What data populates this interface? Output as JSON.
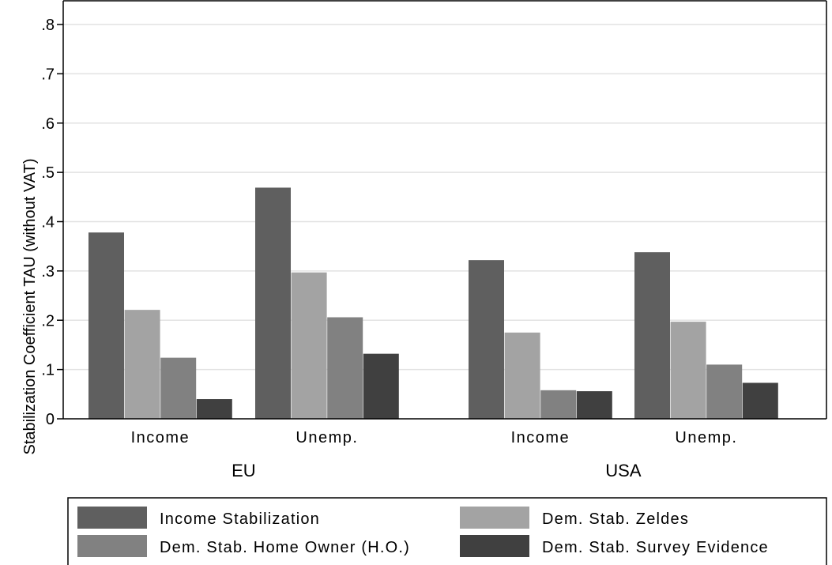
{
  "chart_data": {
    "type": "bar",
    "ylabel": "Stabilization Coefficient TAU (without VAT)",
    "ylim": [
      0,
      0.8
    ],
    "yticks": [
      {
        "value": 0,
        "label": "0"
      },
      {
        "value": 0.1,
        "label": ".1"
      },
      {
        "value": 0.2,
        "label": ".2"
      },
      {
        "value": 0.3,
        "label": ".3"
      },
      {
        "value": 0.4,
        "label": ".4"
      },
      {
        "value": 0.5,
        "label": ".5"
      },
      {
        "value": 0.6,
        "label": ".6"
      },
      {
        "value": 0.7,
        "label": ".7"
      },
      {
        "value": 0.8,
        "label": ".8"
      }
    ],
    "grid": true,
    "groups": [
      {
        "name": "EU",
        "categories": [
          "Income",
          "Unemp."
        ]
      },
      {
        "name": "USA",
        "categories": [
          "Income",
          "Unemp."
        ]
      }
    ],
    "series": [
      {
        "name": "Income Stabilization",
        "color": "#5f5f5f",
        "values": [
          0.378,
          0.469,
          0.322,
          0.338
        ]
      },
      {
        "name": "Dem. Stab. Zeldes",
        "color": "#a3a3a3",
        "values": [
          0.221,
          0.297,
          0.175,
          0.197
        ]
      },
      {
        "name": "Dem. Stab. Home Owner (H.O.)",
        "color": "#818181",
        "values": [
          0.124,
          0.206,
          0.058,
          0.11
        ]
      },
      {
        "name": "Dem. Stab. Survey Evidence",
        "color": "#404040",
        "values": [
          0.04,
          0.132,
          0.056,
          0.073
        ]
      }
    ],
    "legend_position": "bottom"
  }
}
